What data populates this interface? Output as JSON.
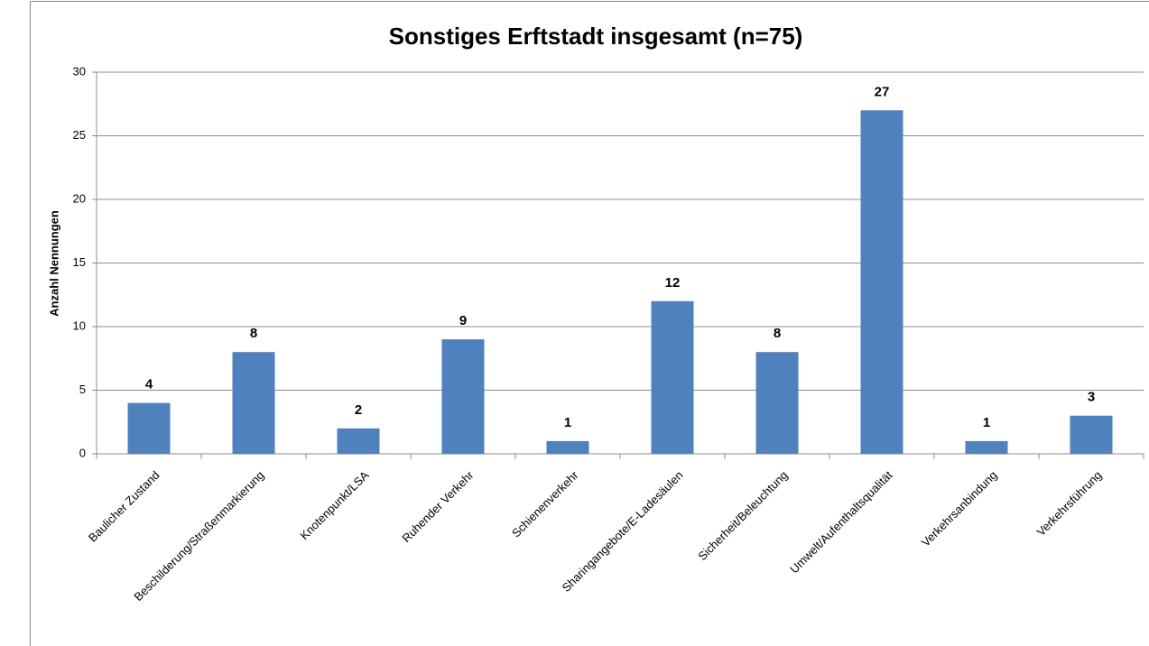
{
  "chart_data": {
    "type": "bar",
    "title": "Sonstiges Erftstadt insgesamt (n=75)",
    "y_label": "Anzahl Nennungen",
    "categories": [
      "Baulicher Zustand",
      "Beschilderung/Straßenmarkierung",
      "Knotenpunkt/LSA",
      "Ruhender Verkehr",
      "Schienenverkehr",
      "Sharingangebote/E-Ladesäulen",
      "Sicherheit/Beleuchtung",
      "Umwelt/Aufenthaltsqualität",
      "Verkehrsanbindung",
      "Verkehrsführung"
    ],
    "values": [
      4,
      8,
      2,
      9,
      1,
      12,
      8,
      27,
      1,
      3
    ],
    "color": "#4f81bd",
    "ylim": [
      0,
      30
    ],
    "yticks": [
      0,
      5,
      10,
      15,
      20,
      25,
      30
    ],
    "grid": true
  }
}
